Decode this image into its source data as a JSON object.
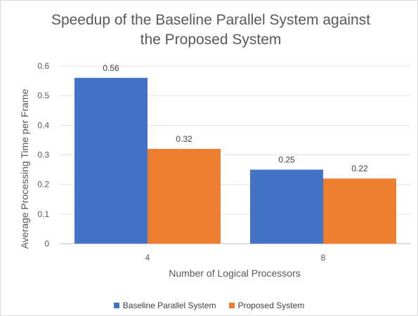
{
  "chart_data": {
    "type": "bar",
    "title_lines": [
      "Speedup of the Baseline Parallel System against",
      "the Proposed System"
    ],
    "xlabel": "Number of Logical Processors",
    "ylabel": "Average Processing Time per Frame",
    "categories": [
      "4",
      "8"
    ],
    "series": [
      {
        "name": "Baseline Parallel System",
        "color": "#4472c4",
        "values": [
          0.56,
          0.25
        ],
        "labels": [
          "0.56",
          "0.25"
        ]
      },
      {
        "name": "Proposed System",
        "color": "#ed7d31",
        "values": [
          0.32,
          0.22
        ],
        "labels": [
          "0.32",
          "0.22"
        ]
      }
    ],
    "ylim": [
      0,
      0.6
    ],
    "yticks": [
      "0",
      "0.1",
      "0.2",
      "0.3",
      "0.4",
      "0.5",
      "0.6"
    ],
    "grid": true,
    "legend": "bottom"
  }
}
